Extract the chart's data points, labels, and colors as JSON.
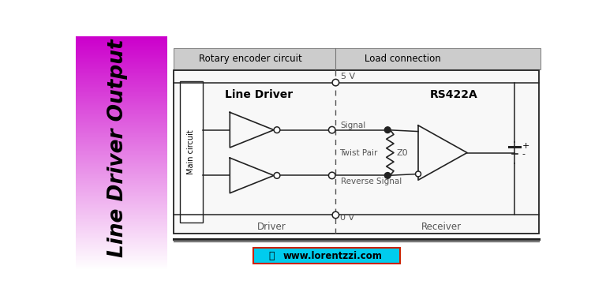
{
  "title": "Line Driver Output",
  "header_text1": "Rotary encoder circuit",
  "header_text2": "Load connection",
  "label_line_driver": "Line Driver",
  "label_rs422a": "RS422A",
  "label_signal": "Signal",
  "label_reverse": "Reverse Signal",
  "label_twist_pair": "Twist Pair",
  "label_z0": "Z0",
  "label_5v": "5 V",
  "label_0v": "0 V",
  "label_driver": "Driver",
  "label_receiver": "Receiver",
  "label_main_circuit": "Main circuit",
  "label_plus": "+",
  "label_minus": "-",
  "website": "www.lorentzzi.com",
  "line_color": "#222222",
  "text_color": "#555555",
  "purple_left": "#cc00ff",
  "purple_right": "#ffffff",
  "header_bg": "#cccccc",
  "circuit_bg": "#f0f0f0",
  "web_bg": "#00ccee",
  "web_border": "#cc2200"
}
